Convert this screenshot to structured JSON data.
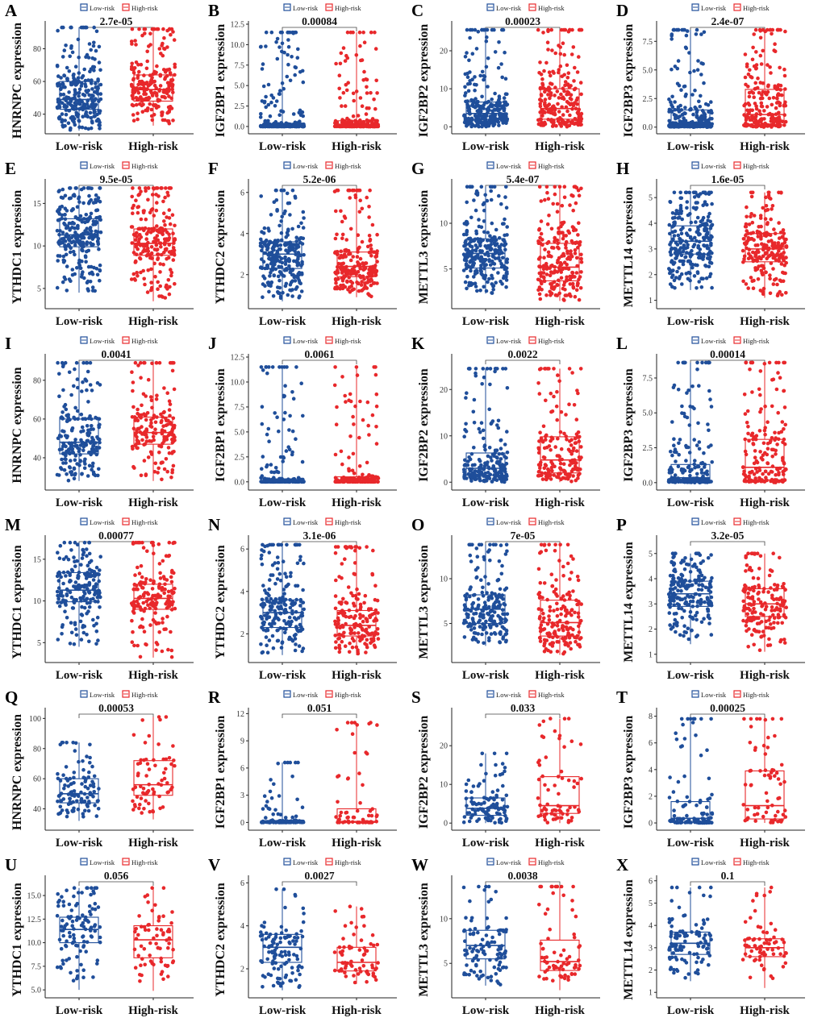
{
  "figure": {
    "group_low": "Low-risk",
    "group_high": "High-risk",
    "colors": {
      "low": "#1f4e9a",
      "high": "#e8282b",
      "text": "#1a1a1a"
    }
  },
  "chart_data": [
    {
      "letter": "A",
      "type": "box-scatter",
      "gene": "HNRNPC",
      "ylabel": "HNRNPC expression",
      "pvalue": "2.7e-05",
      "ylim": [
        30,
        95
      ],
      "yticks": [
        "40",
        "60",
        "80"
      ],
      "yticks_val": [
        40,
        60,
        80
      ],
      "categories": [
        "Low-risk",
        "High-risk"
      ],
      "low": {
        "min": 30,
        "q1": 43,
        "median": 49,
        "q3": 60,
        "max": 93
      },
      "high": {
        "min": 33,
        "q1": 48,
        "median": 55,
        "q3": 64,
        "max": 92
      },
      "n": [
        260,
        220
      ]
    },
    {
      "letter": "B",
      "type": "box-scatter",
      "gene": "IGF2BP1",
      "ylabel": "IGF2BP1 expression",
      "pvalue": "0.00084",
      "ylim": [
        -0.5,
        12.5
      ],
      "yticks": [
        "0.0",
        "2.5",
        "5.0",
        "7.5",
        "10.0",
        "12.5"
      ],
      "yticks_val": [
        0,
        2.5,
        5,
        7.5,
        10,
        12.5
      ],
      "categories": [
        "Low-risk",
        "High-risk"
      ],
      "low": {
        "min": 0,
        "q1": 0,
        "median": 0.1,
        "q3": 0.3,
        "max": 11.5
      },
      "high": {
        "min": 0,
        "q1": 0,
        "median": 0.2,
        "q3": 0.7,
        "max": 11.5
      },
      "n": [
        260,
        220
      ]
    },
    {
      "letter": "C",
      "type": "box-scatter",
      "gene": "IGF2BP2",
      "ylabel": "IGF2BP2 expression",
      "pvalue": "0.00023",
      "ylim": [
        -1,
        27
      ],
      "yticks": [
        "0",
        "10",
        "20"
      ],
      "yticks_val": [
        0,
        10,
        20
      ],
      "categories": [
        "Low-risk",
        "High-risk"
      ],
      "low": {
        "min": 0,
        "q1": 2,
        "median": 3.5,
        "q3": 6.5,
        "max": 25.5
      },
      "high": {
        "min": 0,
        "q1": 2,
        "median": 4.8,
        "q3": 10,
        "max": 25.5
      },
      "n": [
        260,
        220
      ]
    },
    {
      "letter": "D",
      "type": "box-scatter",
      "gene": "IGF2BP3",
      "ylabel": "IGF2BP3 expression",
      "pvalue": "2.4e-07",
      "ylim": [
        -0.3,
        9
      ],
      "yticks": [
        "0.0",
        "2.5",
        "5.0",
        "7.5"
      ],
      "yticks_val": [
        0,
        2.5,
        5,
        7.5
      ],
      "categories": [
        "Low-risk",
        "High-risk"
      ],
      "low": {
        "min": 0,
        "q1": 0.1,
        "median": 0.35,
        "q3": 1.5,
        "max": 8.5
      },
      "high": {
        "min": 0,
        "q1": 0.2,
        "median": 1.1,
        "q3": 3.3,
        "max": 8.5
      },
      "n": [
        260,
        220
      ]
    },
    {
      "letter": "E",
      "type": "box-scatter",
      "gene": "YTHDC1",
      "ylabel": "YTHDC1 expression",
      "pvalue": "9.5e-05",
      "ylim": [
        3,
        17.5
      ],
      "yticks": [
        "5",
        "10",
        "15"
      ],
      "yticks_val": [
        5,
        10,
        15
      ],
      "categories": [
        "Low-risk",
        "High-risk"
      ],
      "low": {
        "min": 4.5,
        "q1": 9.9,
        "median": 11.3,
        "q3": 13.2,
        "max": 16.8
      },
      "high": {
        "min": 3.5,
        "q1": 8.9,
        "median": 10.3,
        "q3": 12,
        "max": 16.8
      },
      "n": [
        260,
        220
      ]
    },
    {
      "letter": "F",
      "type": "box-scatter",
      "gene": "YTHDC2",
      "ylabel": "YTHDC2 expression",
      "pvalue": "5.2e-06",
      "ylim": [
        0.5,
        6.5
      ],
      "yticks": [
        "2",
        "4",
        "6"
      ],
      "yticks_val": [
        2,
        4,
        6
      ],
      "categories": [
        "Low-risk",
        "High-risk"
      ],
      "low": {
        "min": 0.7,
        "q1": 2.3,
        "median": 3,
        "q3": 3.6,
        "max": 6.1
      },
      "high": {
        "min": 0.9,
        "q1": 1.9,
        "median": 2.4,
        "q3": 3.1,
        "max": 6.1
      },
      "n": [
        260,
        220
      ]
    },
    {
      "letter": "G",
      "type": "box-scatter",
      "gene": "METTL3",
      "ylabel": "METTL3 expression",
      "pvalue": "5.4e-07",
      "ylim": [
        1,
        14.5
      ],
      "yticks": [
        "5",
        "10"
      ],
      "yticks_val": [
        5,
        10
      ],
      "categories": [
        "Low-risk",
        "High-risk"
      ],
      "low": {
        "min": 2.3,
        "q1": 5.1,
        "median": 6.7,
        "q3": 8.3,
        "max": 14
      },
      "high": {
        "min": 1.5,
        "q1": 3.7,
        "median": 5.2,
        "q3": 7.8,
        "max": 14
      },
      "n": [
        260,
        220
      ]
    },
    {
      "letter": "H",
      "type": "box-scatter",
      "gene": "METTL14",
      "ylabel": "METTL14 expression",
      "pvalue": "1.6e-05",
      "ylim": [
        0.8,
        5.6
      ],
      "yticks": [
        "1",
        "2",
        "3",
        "4",
        "5"
      ],
      "yticks_val": [
        1,
        2,
        3,
        4,
        5
      ],
      "categories": [
        "Low-risk",
        "High-risk"
      ],
      "low": {
        "min": 1.4,
        "q1": 2.8,
        "median": 3.3,
        "q3": 3.9,
        "max": 5.2
      },
      "high": {
        "min": 1.1,
        "q1": 2.5,
        "median": 3,
        "q3": 3.6,
        "max": 5.2
      },
      "n": [
        260,
        220
      ]
    },
    {
      "letter": "I",
      "type": "box-scatter",
      "gene": "HNRNPC",
      "ylabel": "HNRNPC expression",
      "pvalue": "0.0041",
      "ylim": [
        25,
        92
      ],
      "yticks": [
        "40",
        "60",
        "80"
      ],
      "yticks_val": [
        40,
        60,
        80
      ],
      "categories": [
        "Low-risk",
        "High-risk"
      ],
      "low": {
        "min": 28,
        "q1": 42,
        "median": 48,
        "q3": 60,
        "max": 89
      },
      "high": {
        "min": 28,
        "q1": 47,
        "median": 53,
        "q3": 61,
        "max": 89
      },
      "n": [
        200,
        170
      ]
    },
    {
      "letter": "J",
      "type": "box-scatter",
      "gene": "IGF2BP1",
      "ylabel": "IGF2BP1 expression",
      "pvalue": "0.0061",
      "ylim": [
        -0.5,
        12.5
      ],
      "yticks": [
        "0.0",
        "2.5",
        "5.0",
        "7.5",
        "10.0",
        "12.5"
      ],
      "yticks_val": [
        0,
        2.5,
        5,
        7.5,
        10,
        12.5
      ],
      "categories": [
        "Low-risk",
        "High-risk"
      ],
      "low": {
        "min": 0,
        "q1": 0,
        "median": 0.1,
        "q3": 0.3,
        "max": 11.5
      },
      "high": {
        "min": 0,
        "q1": 0,
        "median": 0.15,
        "q3": 0.5,
        "max": 11.5
      },
      "n": [
        200,
        170
      ]
    },
    {
      "letter": "K",
      "type": "box-scatter",
      "gene": "IGF2BP2",
      "ylabel": "IGF2BP2 expression",
      "pvalue": "0.0022",
      "ylim": [
        -1,
        27
      ],
      "yticks": [
        "0",
        "10",
        "20"
      ],
      "yticks_val": [
        0,
        10,
        20
      ],
      "categories": [
        "Low-risk",
        "High-risk"
      ],
      "low": {
        "min": 0,
        "q1": 1.5,
        "median": 3,
        "q3": 6.3,
        "max": 24.5
      },
      "high": {
        "min": 0,
        "q1": 2,
        "median": 4.8,
        "q3": 9.8,
        "max": 24.5
      },
      "n": [
        200,
        170
      ]
    },
    {
      "letter": "L",
      "type": "box-scatter",
      "gene": "IGF2BP3",
      "ylabel": "IGF2BP3 expression",
      "pvalue": "0.00014",
      "ylim": [
        -0.3,
        9
      ],
      "yticks": [
        "0.0",
        "2.5",
        "5.0",
        "7.5"
      ],
      "yticks_val": [
        0,
        2.5,
        5,
        7.5
      ],
      "categories": [
        "Low-risk",
        "High-risk"
      ],
      "low": {
        "min": 0,
        "q1": 0.1,
        "median": 0.35,
        "q3": 1.3,
        "max": 8.6
      },
      "high": {
        "min": 0,
        "q1": 0.2,
        "median": 1.1,
        "q3": 3.1,
        "max": 8.6
      },
      "n": [
        200,
        170
      ]
    },
    {
      "letter": "M",
      "type": "box-scatter",
      "gene": "YTHDC1",
      "ylabel": "YTHDC1 expression",
      "pvalue": "0.00077",
      "ylim": [
        3,
        17.5
      ],
      "yticks": [
        "5",
        "10",
        "15"
      ],
      "yticks_val": [
        5,
        10,
        15
      ],
      "categories": [
        "Low-risk",
        "High-risk"
      ],
      "low": {
        "min": 4.5,
        "q1": 9.9,
        "median": 11.3,
        "q3": 13.4,
        "max": 17
      },
      "high": {
        "min": 3.2,
        "q1": 9,
        "median": 10.3,
        "q3": 12,
        "max": 17
      },
      "n": [
        200,
        170
      ]
    },
    {
      "letter": "N",
      "type": "box-scatter",
      "gene": "YTHDC2",
      "ylabel": "YTHDC2 expression",
      "pvalue": "3.1e-06",
      "ylim": [
        0.8,
        6.5
      ],
      "yticks": [
        "2",
        "4",
        "6"
      ],
      "yticks_val": [
        2,
        4,
        6
      ],
      "categories": [
        "Low-risk",
        "High-risk"
      ],
      "low": {
        "min": 1,
        "q1": 2.3,
        "median": 3,
        "q3": 3.6,
        "max": 6.2
      },
      "high": {
        "min": 1,
        "q1": 1.9,
        "median": 2.4,
        "q3": 3.1,
        "max": 6.1
      },
      "n": [
        200,
        170
      ]
    },
    {
      "letter": "O",
      "type": "box-scatter",
      "gene": "METTL3",
      "ylabel": "METTL3 expression",
      "pvalue": "7e-05",
      "ylim": [
        1,
        14.5
      ],
      "yticks": [
        "5",
        "10"
      ],
      "yticks_val": [
        5,
        10
      ],
      "categories": [
        "Low-risk",
        "High-risk"
      ],
      "low": {
        "min": 2.5,
        "q1": 5,
        "median": 6.6,
        "q3": 8.2,
        "max": 13.8
      },
      "high": {
        "min": 1.5,
        "q1": 3.6,
        "median": 5.1,
        "q3": 7.6,
        "max": 13.8
      },
      "n": [
        200,
        170
      ]
    },
    {
      "letter": "P",
      "type": "box-scatter",
      "gene": "METTL14",
      "ylabel": "METTL14 expression",
      "pvalue": "3.2e-05",
      "ylim": [
        0.8,
        5.6
      ],
      "yticks": [
        "1",
        "2",
        "3",
        "4",
        "5"
      ],
      "yticks_val": [
        1,
        2,
        3,
        4,
        5
      ],
      "categories": [
        "Low-risk",
        "High-risk"
      ],
      "low": {
        "min": 1.4,
        "q1": 2.9,
        "median": 3.4,
        "q3": 3.9,
        "max": 5
      },
      "high": {
        "min": 1.1,
        "q1": 2.5,
        "median": 3,
        "q3": 3.6,
        "max": 5
      },
      "n": [
        200,
        170
      ]
    },
    {
      "letter": "Q",
      "type": "box-scatter",
      "gene": "HNRNPC",
      "ylabel": "HNRNPC expression",
      "pvalue": "0.00053",
      "ylim": [
        28,
        105
      ],
      "yticks": [
        "40",
        "60",
        "80",
        "100"
      ],
      "yticks_val": [
        40,
        60,
        80,
        100
      ],
      "categories": [
        "Low-risk",
        "High-risk"
      ],
      "low": {
        "min": 32,
        "q1": 44,
        "median": 50,
        "q3": 60,
        "max": 84
      },
      "high": {
        "min": 33,
        "q1": 49,
        "median": 56,
        "q3": 72,
        "max": 101
      },
      "n": [
        110,
        70
      ]
    },
    {
      "letter": "R",
      "type": "box-scatter",
      "gene": "IGF2BP1",
      "ylabel": "IGF2BP1 expression",
      "pvalue": "0.051",
      "ylim": [
        -0.5,
        12.3
      ],
      "yticks": [
        "0",
        "3",
        "6",
        "9",
        "12"
      ],
      "yticks_val": [
        0,
        3,
        6,
        9,
        12
      ],
      "categories": [
        "Low-risk",
        "High-risk"
      ],
      "low": {
        "min": 0,
        "q1": 0,
        "median": 0.05,
        "q3": 0.2,
        "max": 6.6
      },
      "high": {
        "min": 0,
        "q1": 0,
        "median": 0.1,
        "q3": 1.5,
        "max": 11
      },
      "n": [
        110,
        70
      ]
    },
    {
      "letter": "S",
      "type": "box-scatter",
      "gene": "IGF2BP2",
      "ylabel": "IGF2BP2 expression",
      "pvalue": "0.033",
      "ylim": [
        -1,
        29
      ],
      "yticks": [
        "0",
        "10",
        "20"
      ],
      "yticks_val": [
        0,
        10,
        20
      ],
      "categories": [
        "Low-risk",
        "High-risk"
      ],
      "low": {
        "min": 0,
        "q1": 2,
        "median": 3.8,
        "q3": 6.5,
        "max": 18
      },
      "high": {
        "min": 0,
        "q1": 2.5,
        "median": 4.5,
        "q3": 12,
        "max": 27
      },
      "n": [
        110,
        70
      ]
    },
    {
      "letter": "T",
      "type": "box-scatter",
      "gene": "IGF2BP3",
      "ylabel": "IGF2BP3 expression",
      "pvalue": "0.00025",
      "ylim": [
        -0.3,
        8.4
      ],
      "yticks": [
        "0",
        "2",
        "4",
        "6",
        "8"
      ],
      "yticks_val": [
        0,
        2,
        4,
        6,
        8
      ],
      "categories": [
        "Low-risk",
        "High-risk"
      ],
      "low": {
        "min": 0,
        "q1": 0.05,
        "median": 0.35,
        "q3": 1.6,
        "max": 7.8
      },
      "high": {
        "min": 0,
        "q1": 0.3,
        "median": 1.3,
        "q3": 3.9,
        "max": 7.8
      },
      "n": [
        110,
        70
      ]
    },
    {
      "letter": "U",
      "type": "box-scatter",
      "gene": "YTHDC1",
      "ylabel": "YTHDC1 expression",
      "pvalue": "0.056",
      "ylim": [
        4.5,
        16.8
      ],
      "yticks": [
        "5.0",
        "7.5",
        "10.0",
        "12.5",
        "15.0"
      ],
      "yticks_val": [
        5,
        7.5,
        10,
        12.5,
        15
      ],
      "categories": [
        "Low-risk",
        "High-risk"
      ],
      "low": {
        "min": 5,
        "q1": 10,
        "median": 11.4,
        "q3": 12.7,
        "max": 15.8
      },
      "high": {
        "min": 4.9,
        "q1": 8.4,
        "median": 10.3,
        "q3": 11.8,
        "max": 15.8
      },
      "n": [
        110,
        70
      ]
    },
    {
      "letter": "V",
      "type": "box-scatter",
      "gene": "YTHDC2",
      "ylabel": "YTHDC2 expression",
      "pvalue": "0.0027",
      "ylim": [
        0.8,
        6.2
      ],
      "yticks": [
        "2",
        "4",
        "6"
      ],
      "yticks_val": [
        2,
        4,
        6
      ],
      "categories": [
        "Low-risk",
        "High-risk"
      ],
      "low": {
        "min": 1,
        "q1": 2.3,
        "median": 3,
        "q3": 3.6,
        "max": 5.7
      },
      "high": {
        "min": 1.3,
        "q1": 1.9,
        "median": 2.3,
        "q3": 3,
        "max": 4.9
      },
      "n": [
        110,
        70
      ]
    },
    {
      "letter": "W",
      "type": "box-scatter",
      "gene": "METTL3",
      "ylabel": "METTL3 expression",
      "pvalue": "0.0038",
      "ylim": [
        1.5,
        14.5
      ],
      "yticks": [
        "5",
        "10"
      ],
      "yticks_val": [
        5,
        10
      ],
      "categories": [
        "Low-risk",
        "High-risk"
      ],
      "low": {
        "min": 2.5,
        "q1": 5.5,
        "median": 7,
        "q3": 8.7,
        "max": 13.6
      },
      "high": {
        "min": 2,
        "q1": 4.2,
        "median": 5.2,
        "q3": 7.6,
        "max": 13.6
      },
      "n": [
        110,
        70
      ]
    },
    {
      "letter": "X",
      "type": "box-scatter",
      "gene": "METTL14",
      "ylabel": "METTL14 expression",
      "pvalue": "0.1",
      "ylim": [
        0.9,
        6.1
      ],
      "yticks": [
        "1",
        "2",
        "3",
        "4",
        "5",
        "6"
      ],
      "yticks_val": [
        1,
        2,
        3,
        4,
        5,
        6
      ],
      "categories": [
        "Low-risk",
        "High-risk"
      ],
      "low": {
        "min": 1.5,
        "q1": 2.7,
        "median": 3.2,
        "q3": 3.7,
        "max": 5.7
      },
      "high": {
        "min": 1.2,
        "q1": 2.6,
        "median": 3,
        "q3": 3.4,
        "max": 5.7
      },
      "n": [
        110,
        70
      ]
    }
  ]
}
